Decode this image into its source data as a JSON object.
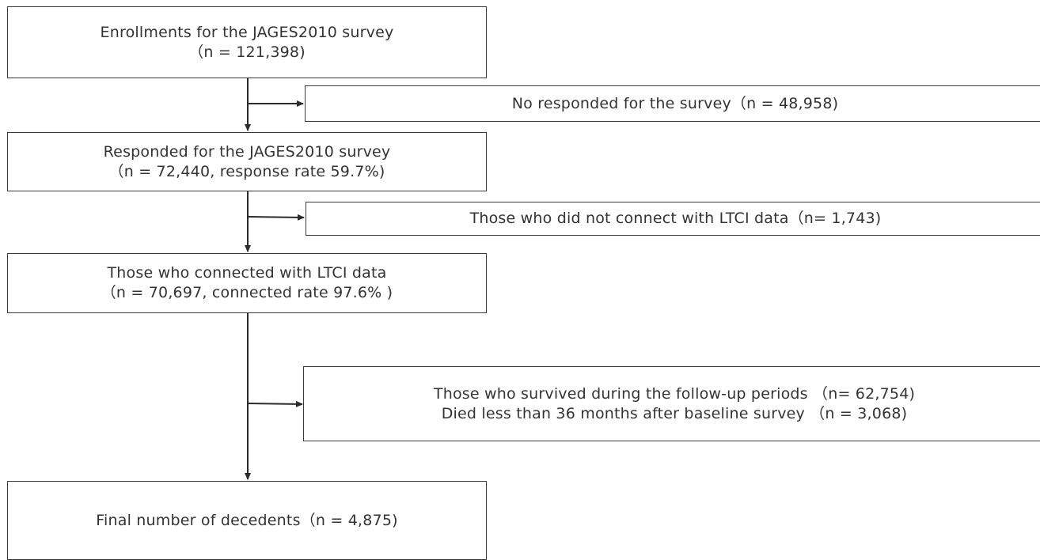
{
  "flowchart": {
    "enrollment": {
      "line1": "Enrollments for the JAGES2010 survey",
      "line2": "（n = 121,398)"
    },
    "no_response": {
      "line1": "No responded for the survey（n = 48,958)"
    },
    "responded": {
      "line1": "Responded for the JAGES2010 survey",
      "line2": "（n = 72,440, response rate 59.7%)"
    },
    "not_connected": {
      "line1": "Those who did not connect with LTCI data（n= 1,743)"
    },
    "connected": {
      "line1": "Those who connected with LTCI data",
      "line2": "（n = 70,697, connected rate 97.6% )"
    },
    "survived": {
      "line1": "Those who survived during the follow-up periods （n= 62,754)",
      "line2": "Died less than 36 months after baseline survey （n = 3,068)"
    },
    "final": {
      "line1": "Final number of decedents（n = 4,875)"
    }
  },
  "colors": {
    "border": "#3a3a3a",
    "text": "#333333",
    "arrow": "#2b2b2b"
  }
}
